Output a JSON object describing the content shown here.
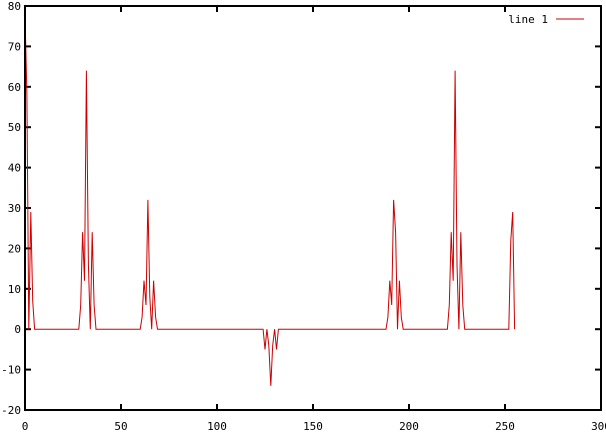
{
  "chart_data": {
    "type": "line",
    "title": "",
    "xlabel": "",
    "ylabel": "",
    "xlim": [
      0,
      300
    ],
    "ylim": [
      -20,
      80
    ],
    "xticks": [
      0,
      50,
      100,
      150,
      200,
      250,
      300
    ],
    "yticks": [
      -20,
      -10,
      0,
      10,
      20,
      30,
      40,
      50,
      60,
      70,
      80
    ],
    "grid": false,
    "legend_position": "top-right",
    "series": [
      {
        "name": "line 1",
        "color": "#cc0000",
        "x": [
          0,
          1,
          2,
          3,
          4,
          5,
          28,
          29,
          30,
          31,
          32,
          33,
          34,
          35,
          36,
          37,
          60,
          61,
          62,
          63,
          64,
          65,
          66,
          67,
          68,
          69,
          124,
          125,
          126,
          127,
          128,
          129,
          130,
          131,
          132,
          188,
          189,
          190,
          191,
          192,
          193,
          194,
          195,
          196,
          197,
          220,
          221,
          222,
          223,
          224,
          225,
          226,
          227,
          228,
          229,
          252,
          253,
          254,
          255
        ],
        "y": [
          78,
          58,
          0,
          29,
          7,
          0,
          0,
          6,
          24,
          12,
          64,
          16,
          0,
          24,
          6,
          0,
          0,
          3,
          12,
          6,
          32,
          8,
          0,
          12,
          3,
          0,
          0,
          -5,
          0,
          -4,
          -14,
          -4,
          0,
          -5,
          0,
          0,
          3,
          12,
          6,
          32,
          24,
          0,
          12,
          3,
          0,
          0,
          6,
          24,
          12,
          64,
          16,
          0,
          24,
          6,
          0,
          0,
          22,
          29,
          0
        ]
      }
    ]
  }
}
